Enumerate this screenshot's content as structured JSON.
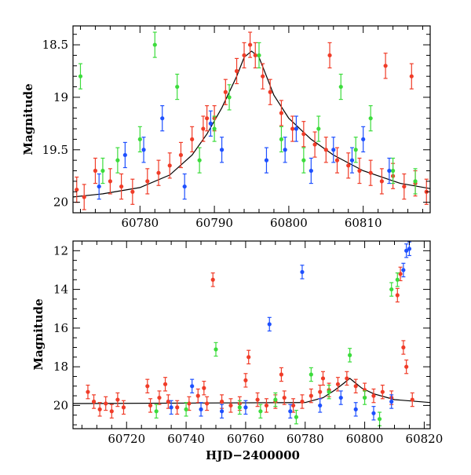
{
  "chart_data": [
    {
      "panel": "top",
      "type": "scatter",
      "title": "",
      "xlabel": "",
      "ylabel": "Magnitude",
      "xlim": [
        60771,
        60819
      ],
      "ylim": [
        20.1,
        18.32
      ],
      "y_inverted": true,
      "xticks": [
        60780,
        60790,
        60800,
        60810
      ],
      "yticks": [
        18.5,
        19,
        19.5,
        20
      ],
      "ytick_labels": [
        "18.5",
        "19",
        "19.5",
        "20"
      ],
      "colors": {
        "red": "#f03c28",
        "green": "#3cdc3c",
        "blue": "#1e50ff",
        "model": "#000000"
      },
      "model_curve": {
        "x": [
          60771,
          60775,
          60780,
          60784,
          60787,
          60789,
          60791,
          60793,
          60794,
          60795,
          60796,
          60797,
          60798,
          60800,
          60803,
          60806,
          60810,
          60815,
          60819
        ],
        "y": [
          19.95,
          19.92,
          19.86,
          19.74,
          19.55,
          19.35,
          19.1,
          18.8,
          18.62,
          18.56,
          18.62,
          18.8,
          18.98,
          19.2,
          19.4,
          19.55,
          19.7,
          19.82,
          19.87
        ]
      },
      "series": [
        {
          "color": "red",
          "x": [
            60771.5,
            60772.5,
            60774,
            60776,
            60777.5,
            60779,
            60781,
            60782.5,
            60784,
            60785.5,
            60787,
            60788.5,
            60790,
            60791.5,
            60793,
            60794,
            60794.8,
            60795.5,
            60797.5,
            60799,
            60800.5,
            60802,
            60803.5,
            60805,
            60806.5,
            60808,
            60809.5,
            60811,
            60812.5,
            60814,
            60815.5,
            60817,
            60818.5,
            60796.5,
            60789,
            60805.5,
            60813,
            60816.5
          ],
          "y": [
            19.88,
            19.95,
            19.7,
            19.8,
            19.85,
            19.9,
            19.8,
            19.72,
            19.65,
            19.55,
            19.4,
            19.3,
            19.2,
            18.95,
            18.75,
            18.6,
            18.5,
            18.6,
            18.95,
            19.15,
            19.3,
            19.35,
            19.45,
            19.5,
            19.6,
            19.65,
            19.7,
            19.72,
            19.8,
            19.75,
            19.85,
            19.82,
            19.9,
            18.8,
            19.2,
            18.6,
            18.7,
            18.8
          ]
        },
        {
          "color": "green",
          "x": [
            60772,
            60775,
            60777,
            60780,
            60782,
            60785,
            60788,
            60790,
            60792,
            60796,
            60799,
            60802,
            60804,
            60807,
            60809,
            60811,
            60814,
            60817
          ],
          "y": [
            18.8,
            19.7,
            19.6,
            19.4,
            18.5,
            18.9,
            19.6,
            19.3,
            19.0,
            18.6,
            19.4,
            19.6,
            19.3,
            18.9,
            19.5,
            19.2,
            19.7,
            19.8
          ]
        },
        {
          "color": "blue",
          "x": [
            60774.5,
            60778,
            60780.5,
            60783,
            60786,
            60789.5,
            60791,
            60797,
            60799.5,
            60801,
            60803,
            60806,
            60808.5,
            60810,
            60813.5
          ],
          "y": [
            19.85,
            19.55,
            19.5,
            19.2,
            19.85,
            19.25,
            19.5,
            19.6,
            19.5,
            19.3,
            19.7,
            19.5,
            19.6,
            19.4,
            19.7
          ]
        }
      ]
    },
    {
      "panel": "bottom",
      "type": "scatter",
      "title": "",
      "xlabel": "HJD−2400000",
      "ylabel": "Magnitude",
      "xlim": [
        60702,
        60822
      ],
      "ylim": [
        21.2,
        11.5
      ],
      "y_inverted": true,
      "xticks": [
        60720,
        60740,
        60760,
        60780,
        60800,
        60820
      ],
      "yticks": [
        12,
        14,
        16,
        18,
        20
      ],
      "ytick_labels": [
        "12",
        "14",
        "16",
        "18",
        "20"
      ],
      "colors": {
        "red": "#f03c28",
        "green": "#3cdc3c",
        "blue": "#1e50ff",
        "model": "#000000"
      },
      "model_curve": {
        "x": [
          60702,
          60780,
          60786,
          60790,
          60793,
          60795,
          60797,
          60799,
          60803,
          60810,
          60822
        ],
        "y": [
          19.9,
          19.85,
          19.6,
          19.2,
          18.85,
          18.6,
          18.85,
          19.1,
          19.4,
          19.7,
          19.85
        ]
      },
      "series": [
        {
          "color": "red",
          "x": [
            60707,
            60709,
            60711,
            60713,
            60715,
            60717,
            60719,
            60727,
            60728,
            60731,
            60734,
            60737,
            60741,
            60744,
            60747,
            60749,
            60752,
            60755,
            60758,
            60761,
            60764,
            60767,
            60770,
            60773,
            60776,
            60779,
            60782,
            60785,
            60788,
            60791,
            60794,
            60797,
            60800,
            60803,
            60806,
            60809,
            60811,
            60812,
            60813,
            60814,
            60816,
            60733,
            60746,
            60760,
            60772,
            60786
          ],
          "y": [
            19.3,
            19.8,
            20.2,
            19.9,
            20.3,
            19.7,
            20.1,
            19.0,
            20.0,
            19.6,
            19.8,
            20.1,
            19.9,
            19.5,
            19.9,
            13.5,
            19.8,
            20.0,
            19.9,
            17.5,
            19.7,
            20.0,
            19.8,
            19.6,
            20.0,
            19.8,
            19.5,
            19.3,
            19.2,
            18.9,
            18.6,
            19.0,
            19.2,
            19.5,
            19.3,
            19.6,
            14.3,
            13.2,
            17.0,
            18.0,
            19.7,
            18.9,
            19.1,
            18.7,
            18.4,
            18.6
          ]
        },
        {
          "color": "green",
          "x": [
            60730,
            60740,
            60750,
            60758,
            60765,
            60770,
            60777,
            60782,
            60788,
            60795,
            60800,
            60805,
            60809,
            60811
          ],
          "y": [
            20.3,
            20.2,
            17.1,
            20.1,
            20.3,
            19.7,
            20.6,
            18.4,
            19.3,
            17.4,
            19.6,
            20.7,
            14.0,
            13.5
          ]
        },
        {
          "color": "blue",
          "x": [
            60735,
            60742,
            60745,
            60752,
            60760,
            60768,
            60775,
            60779,
            60785,
            60792,
            60797,
            60803,
            60809,
            60813,
            60814,
            60815
          ],
          "y": [
            20.1,
            19.0,
            20.2,
            20.3,
            20.1,
            15.8,
            20.3,
            13.1,
            20.0,
            19.6,
            20.2,
            20.4,
            19.8,
            13.0,
            12.0,
            11.9
          ]
        }
      ]
    }
  ]
}
